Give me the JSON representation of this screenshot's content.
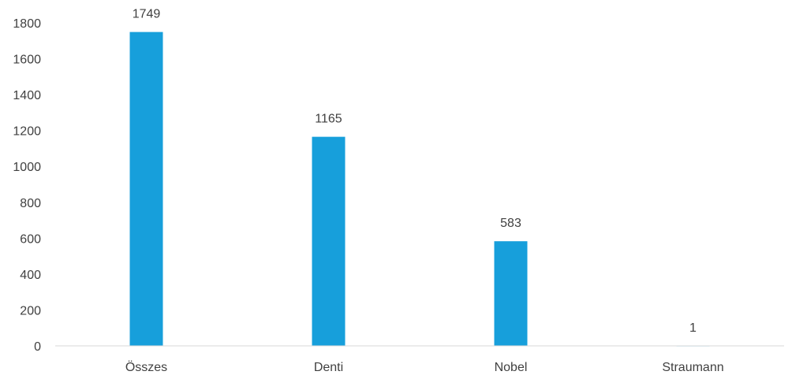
{
  "chart_data": {
    "type": "bar",
    "title": "",
    "xlabel": "",
    "ylabel": "",
    "categories": [
      "Összes",
      "Denti",
      "Nobel",
      "Straumann"
    ],
    "values": [
      1749,
      1165,
      583,
      1
    ],
    "data_labels": [
      "1749",
      "1165",
      "583",
      "1"
    ],
    "ylim": [
      0,
      1800
    ],
    "yticks": [
      0,
      200,
      400,
      600,
      800,
      1000,
      1200,
      1400,
      1600,
      1800
    ],
    "grid": false,
    "legend": "none",
    "bar_color": "#179fdb",
    "axis_color": "#d9d9d9",
    "text_color": "#404040"
  }
}
